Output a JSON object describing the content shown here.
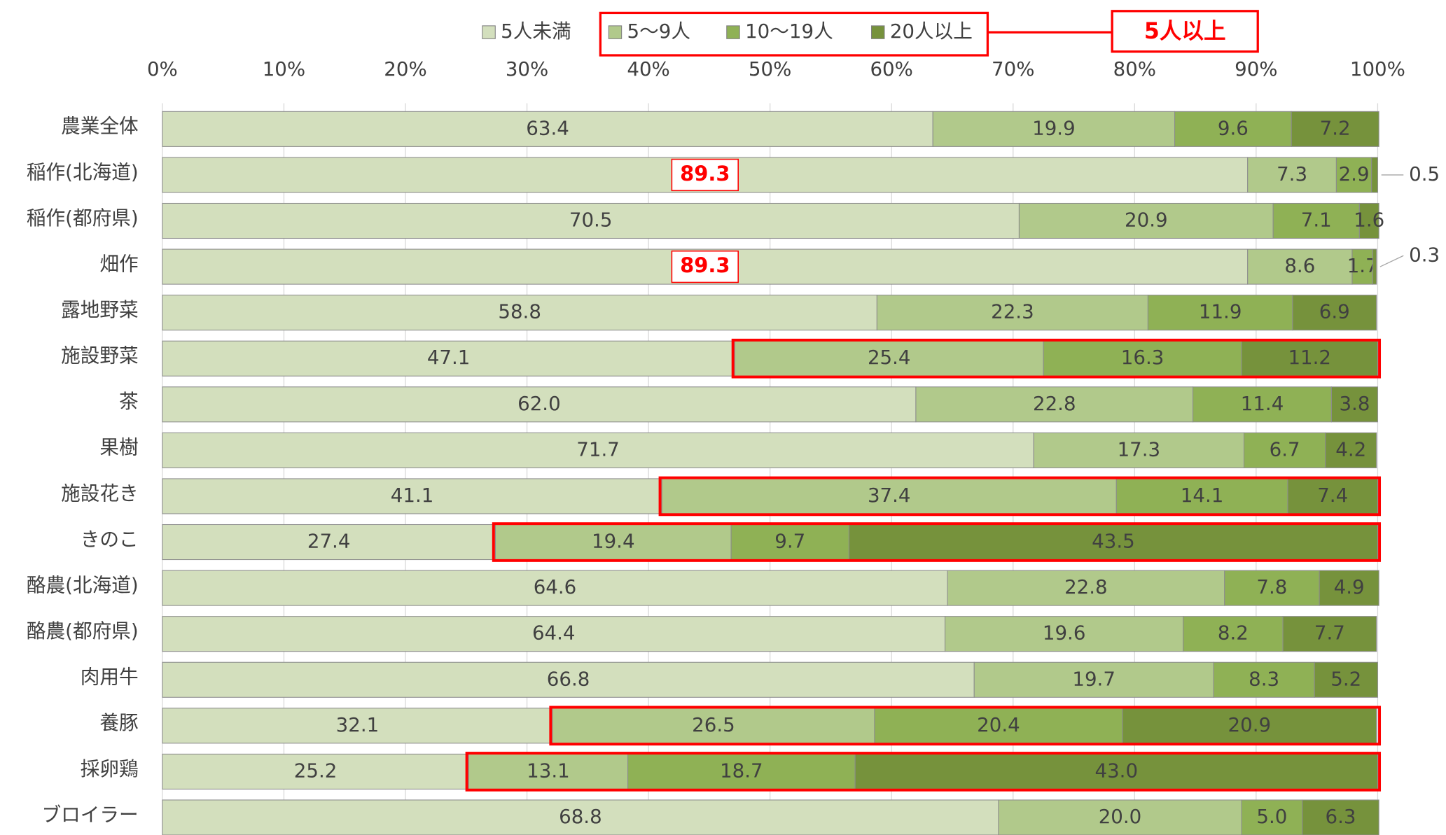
{
  "chart_data": {
    "type": "stacked_barh",
    "categories": [
      "農業全体",
      "稲作(北海道)",
      "稲作(都府県)",
      "畑作",
      "露地野菜",
      "施設野菜",
      "茶",
      "果樹",
      "施設花き",
      "きのこ",
      "酪農(北海道)",
      "酪農(都府県)",
      "肉用牛",
      "養豚",
      "採卵鶏",
      "ブロイラー"
    ],
    "series": [
      {
        "name": "5人未満",
        "color": "#d3dfbd",
        "values": [
          63.4,
          89.3,
          70.5,
          89.3,
          58.8,
          47.1,
          62.0,
          71.7,
          41.1,
          27.4,
          64.6,
          64.4,
          66.8,
          32.1,
          25.2,
          68.8
        ],
        "value_labels": [
          "63.4",
          "89.3",
          "70.5",
          "89.3",
          "58.8",
          "47.1",
          "62.0",
          "71.7",
          "41.1",
          "27.4",
          "64.6",
          "64.4",
          "66.8",
          "32.1",
          "25.2",
          "68.8"
        ]
      },
      {
        "name": "5〜9人",
        "color": "#b1c98b",
        "values": [
          19.9,
          7.3,
          20.9,
          8.6,
          22.3,
          25.4,
          22.8,
          17.3,
          37.4,
          19.4,
          22.8,
          19.6,
          19.7,
          26.5,
          13.1,
          20.0
        ],
        "value_labels": [
          "19.9",
          "7.3",
          "20.9",
          "8.6",
          "22.3",
          "25.4",
          "22.8",
          "17.3",
          "37.4",
          "19.4",
          "22.8",
          "19.6",
          "19.7",
          "26.5",
          "13.1",
          "20.0"
        ]
      },
      {
        "name": "10〜19人",
        "color": "#8fb155",
        "values": [
          9.6,
          2.9,
          7.1,
          1.7,
          11.9,
          16.3,
          11.4,
          6.7,
          14.1,
          9.7,
          7.8,
          8.2,
          8.3,
          20.4,
          18.7,
          5.0
        ],
        "value_labels": [
          "9.6",
          "2.9",
          "7.1",
          "1.7",
          "11.9",
          "16.3",
          "11.4",
          "6.7",
          "14.1",
          "9.7",
          "7.8",
          "8.2",
          "8.3",
          "20.4",
          "18.7",
          "5.0"
        ]
      },
      {
        "name": "20人以上",
        "color": "#76923c",
        "values": [
          7.2,
          0.5,
          1.6,
          0.3,
          6.9,
          11.2,
          3.8,
          4.2,
          7.4,
          43.5,
          4.9,
          7.7,
          5.2,
          20.9,
          43.0,
          6.3
        ],
        "value_labels": [
          "7.2",
          "0.5",
          "1.6",
          "0.3",
          "6.9",
          "11.2",
          "3.8",
          "4.2",
          "7.4",
          "43.5",
          "4.9",
          "7.7",
          "5.2",
          "20.9",
          "43.0",
          "6.3"
        ]
      }
    ],
    "xlim": [
      0,
      100
    ],
    "xticks": [
      {
        "value": 0,
        "label": "0%"
      },
      {
        "value": 10,
        "label": "10%"
      },
      {
        "value": 20,
        "label": "20%"
      },
      {
        "value": 30,
        "label": "30%"
      },
      {
        "value": 40,
        "label": "40%"
      },
      {
        "value": 50,
        "label": "50%"
      },
      {
        "value": 60,
        "label": "60%"
      },
      {
        "value": 70,
        "label": "70%"
      },
      {
        "value": 80,
        "label": "80%"
      },
      {
        "value": 90,
        "label": "90%"
      },
      {
        "value": 100,
        "label": "100%"
      }
    ],
    "grid": true,
    "annotation": "5人以上",
    "highlight_rows": [
      5,
      8,
      9,
      13,
      14
    ],
    "emphasized_labels": [
      [
        0,
        1
      ],
      [
        0,
        3
      ]
    ]
  }
}
